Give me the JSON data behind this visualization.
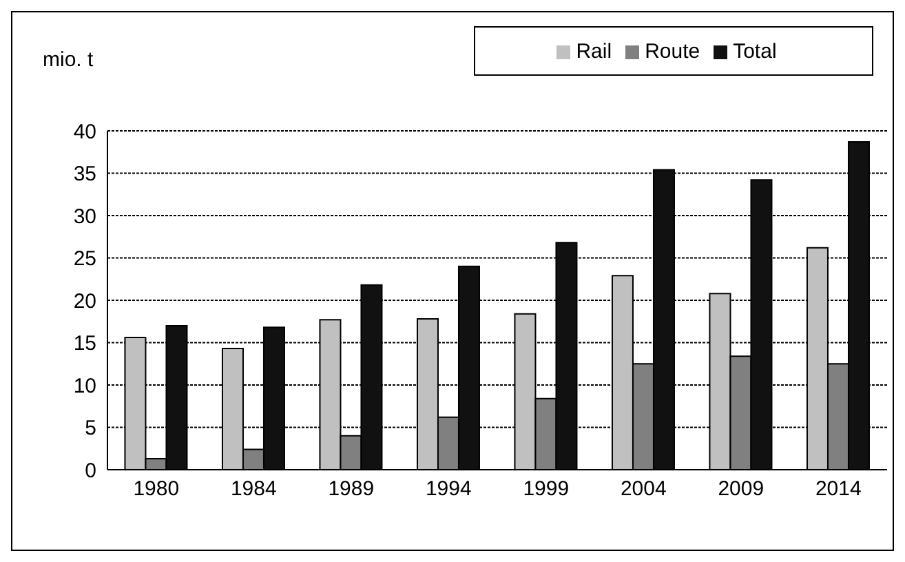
{
  "chart_data": {
    "type": "bar",
    "ylabel": "mio. t",
    "categories": [
      "1980",
      "1984",
      "1989",
      "1994",
      "1999",
      "2004",
      "2009",
      "2014"
    ],
    "series": [
      {
        "name": "Rail",
        "color": "#c0c0c0",
        "values": [
          15.6,
          14.3,
          17.7,
          17.8,
          18.4,
          22.9,
          20.8,
          26.2
        ]
      },
      {
        "name": "Route",
        "color": "#808080",
        "values": [
          1.3,
          2.4,
          4.0,
          6.2,
          8.4,
          12.5,
          13.4,
          12.5
        ]
      },
      {
        "name": "Total",
        "color": "#111111",
        "values": [
          17.0,
          16.8,
          21.8,
          24.0,
          26.8,
          35.4,
          34.2,
          38.7
        ]
      }
    ],
    "ylim": [
      0,
      40
    ],
    "yticks": [
      0,
      5,
      10,
      15,
      20,
      25,
      30,
      35,
      40
    ],
    "grid": "y",
    "legend": "top right"
  }
}
